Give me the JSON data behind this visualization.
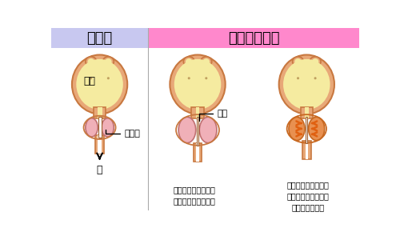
{
  "title_left": "正　常",
  "title_right": "前立腺肥大症",
  "title_left_bg": "#c8c8f0",
  "title_right_bg": "#ff88cc",
  "bg_color": "#ffffff",
  "bladder_outer_color": "#e8a878",
  "bladder_inner_color": "#f5eba0",
  "prostate_color": "#f0b0b8",
  "prostate_border": "#c87070",
  "contracted_color": "#e89050",
  "contracted_border": "#c86820",
  "urethra_color": "#ffffff",
  "arrow_color": "#e06010",
  "label_color": "#000000",
  "border_color": "#c87840",
  "text_label1": "膀胱",
  "text_label2": "前立腺",
  "text_label3": "尿道",
  "text_urine": "尿",
  "text_caption1": "前立腺が大きくなり\n尿道を圧迫している",
  "text_caption2": "前立腺の筋肉の過剰\nな収縮により尿道が\n圧迫されている"
}
